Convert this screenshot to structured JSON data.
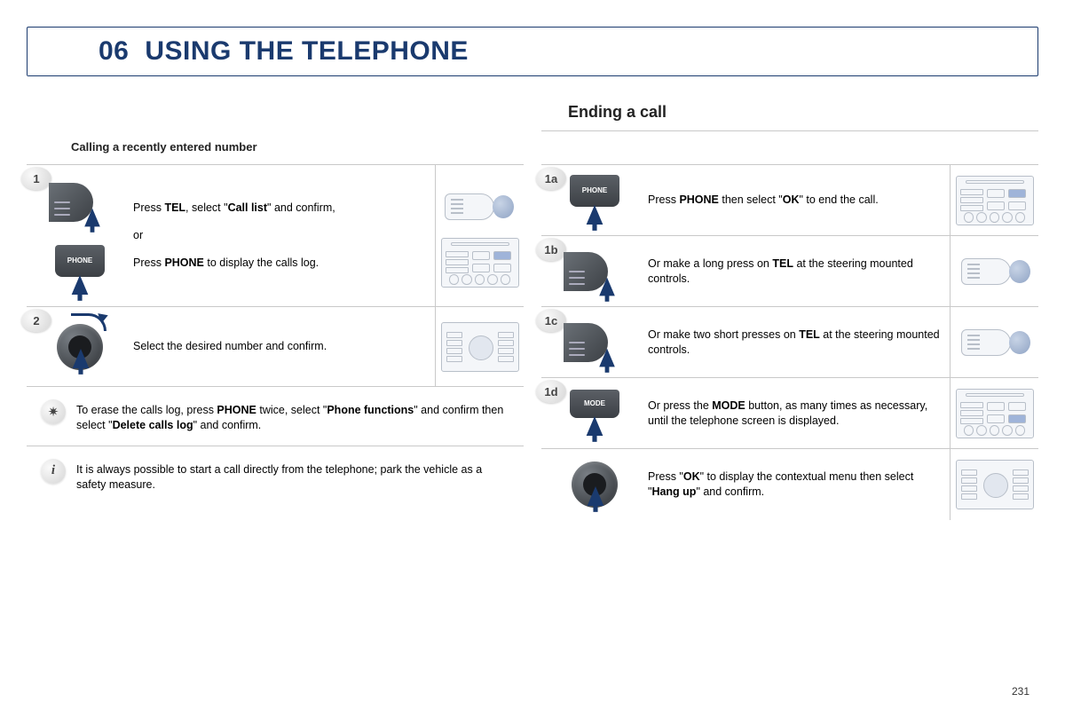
{
  "colors": {
    "primary": "#1a3a6e",
    "border": "#c9c9c9",
    "text": "#222222",
    "diagram_line": "#b8bfc9",
    "diagram_fill": "#f4f6f9",
    "highlight": "#9fb4d9"
  },
  "typography": {
    "title_fontsize": 30,
    "section_fontsize": 18,
    "sub_fontsize": 13,
    "body_fontsize": 12.5
  },
  "page_number": "231",
  "title": {
    "chapter": "06",
    "text": "USING THE TELEPHONE"
  },
  "left": {
    "sub_heading": "Calling a recently entered number",
    "steps": [
      {
        "num": "1",
        "html": "Press <b>TEL</b>, select \"<b>Call list</b>\" and confirm,",
        "or": "or",
        "html2": "Press <b>PHONE</b> to display the calls log.",
        "btn_label": "PHONE"
      },
      {
        "num": "2",
        "html": "Select the desired number and confirm."
      }
    ],
    "tip_html": "To erase the calls log, press <b>PHONE</b> twice, select \"<b>Phone functions</b>\" and confirm then select \"<b>Delete calls log</b>\" and confirm.",
    "info_html": "It is always possible to start a call directly from the telephone; park the vehicle as a safety measure."
  },
  "right": {
    "heading": "Ending a call",
    "steps": [
      {
        "num": "1a",
        "btn_label": "PHONE",
        "html": "Press <b>PHONE</b> then select \"<b>OK</b>\" to end the call."
      },
      {
        "num": "1b",
        "html": "Or make a long press on <b>TEL</b> at the steering mounted controls."
      },
      {
        "num": "1c",
        "html": "Or make two short presses on <b>TEL</b> at the steering mounted controls."
      },
      {
        "num": "1d",
        "btn_label": "MODE",
        "html": "Or press the <b>MODE</b> button, as many times as necessary, until the telephone screen is displayed."
      },
      {
        "num": "",
        "html": "Press \"<b>OK</b>\" to display the contextual menu then select \"<b>Hang up</b>\" and confirm."
      }
    ]
  }
}
